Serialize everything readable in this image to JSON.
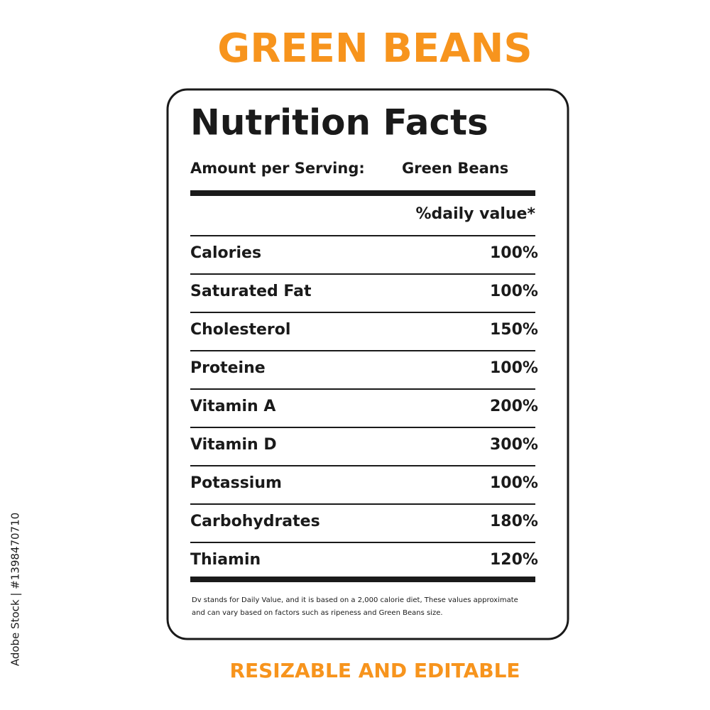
{
  "title": "GREEN BEANS",
  "label": {
    "heading": "Nutrition Facts",
    "serving_label": "Amount per Serving:",
    "serving_value": "Green Beans",
    "column_header": "%daily value*",
    "rows": [
      [
        "Calories",
        "100%"
      ],
      [
        "Saturated Fat",
        "100%"
      ],
      [
        "Cholesterol",
        "150%"
      ],
      [
        "Proteine",
        "100%"
      ],
      [
        "Vitamin A",
        "200%"
      ],
      [
        "Vitamin D",
        "300%"
      ],
      [
        "Potassium",
        "100%"
      ],
      [
        "Carbohydrates",
        "180%"
      ],
      [
        "Thiamin",
        "120%"
      ]
    ],
    "footnote": [
      "Dv stands for Daily Value, and it is based on a 2,000 calorie diet, These values approximate",
      "and can vary based on factors such as ripeness and Green Beans size."
    ]
  },
  "footer": "RESIZABLE AND EDITABLE",
  "side_text": "Adobe Stock | #1398470710"
}
